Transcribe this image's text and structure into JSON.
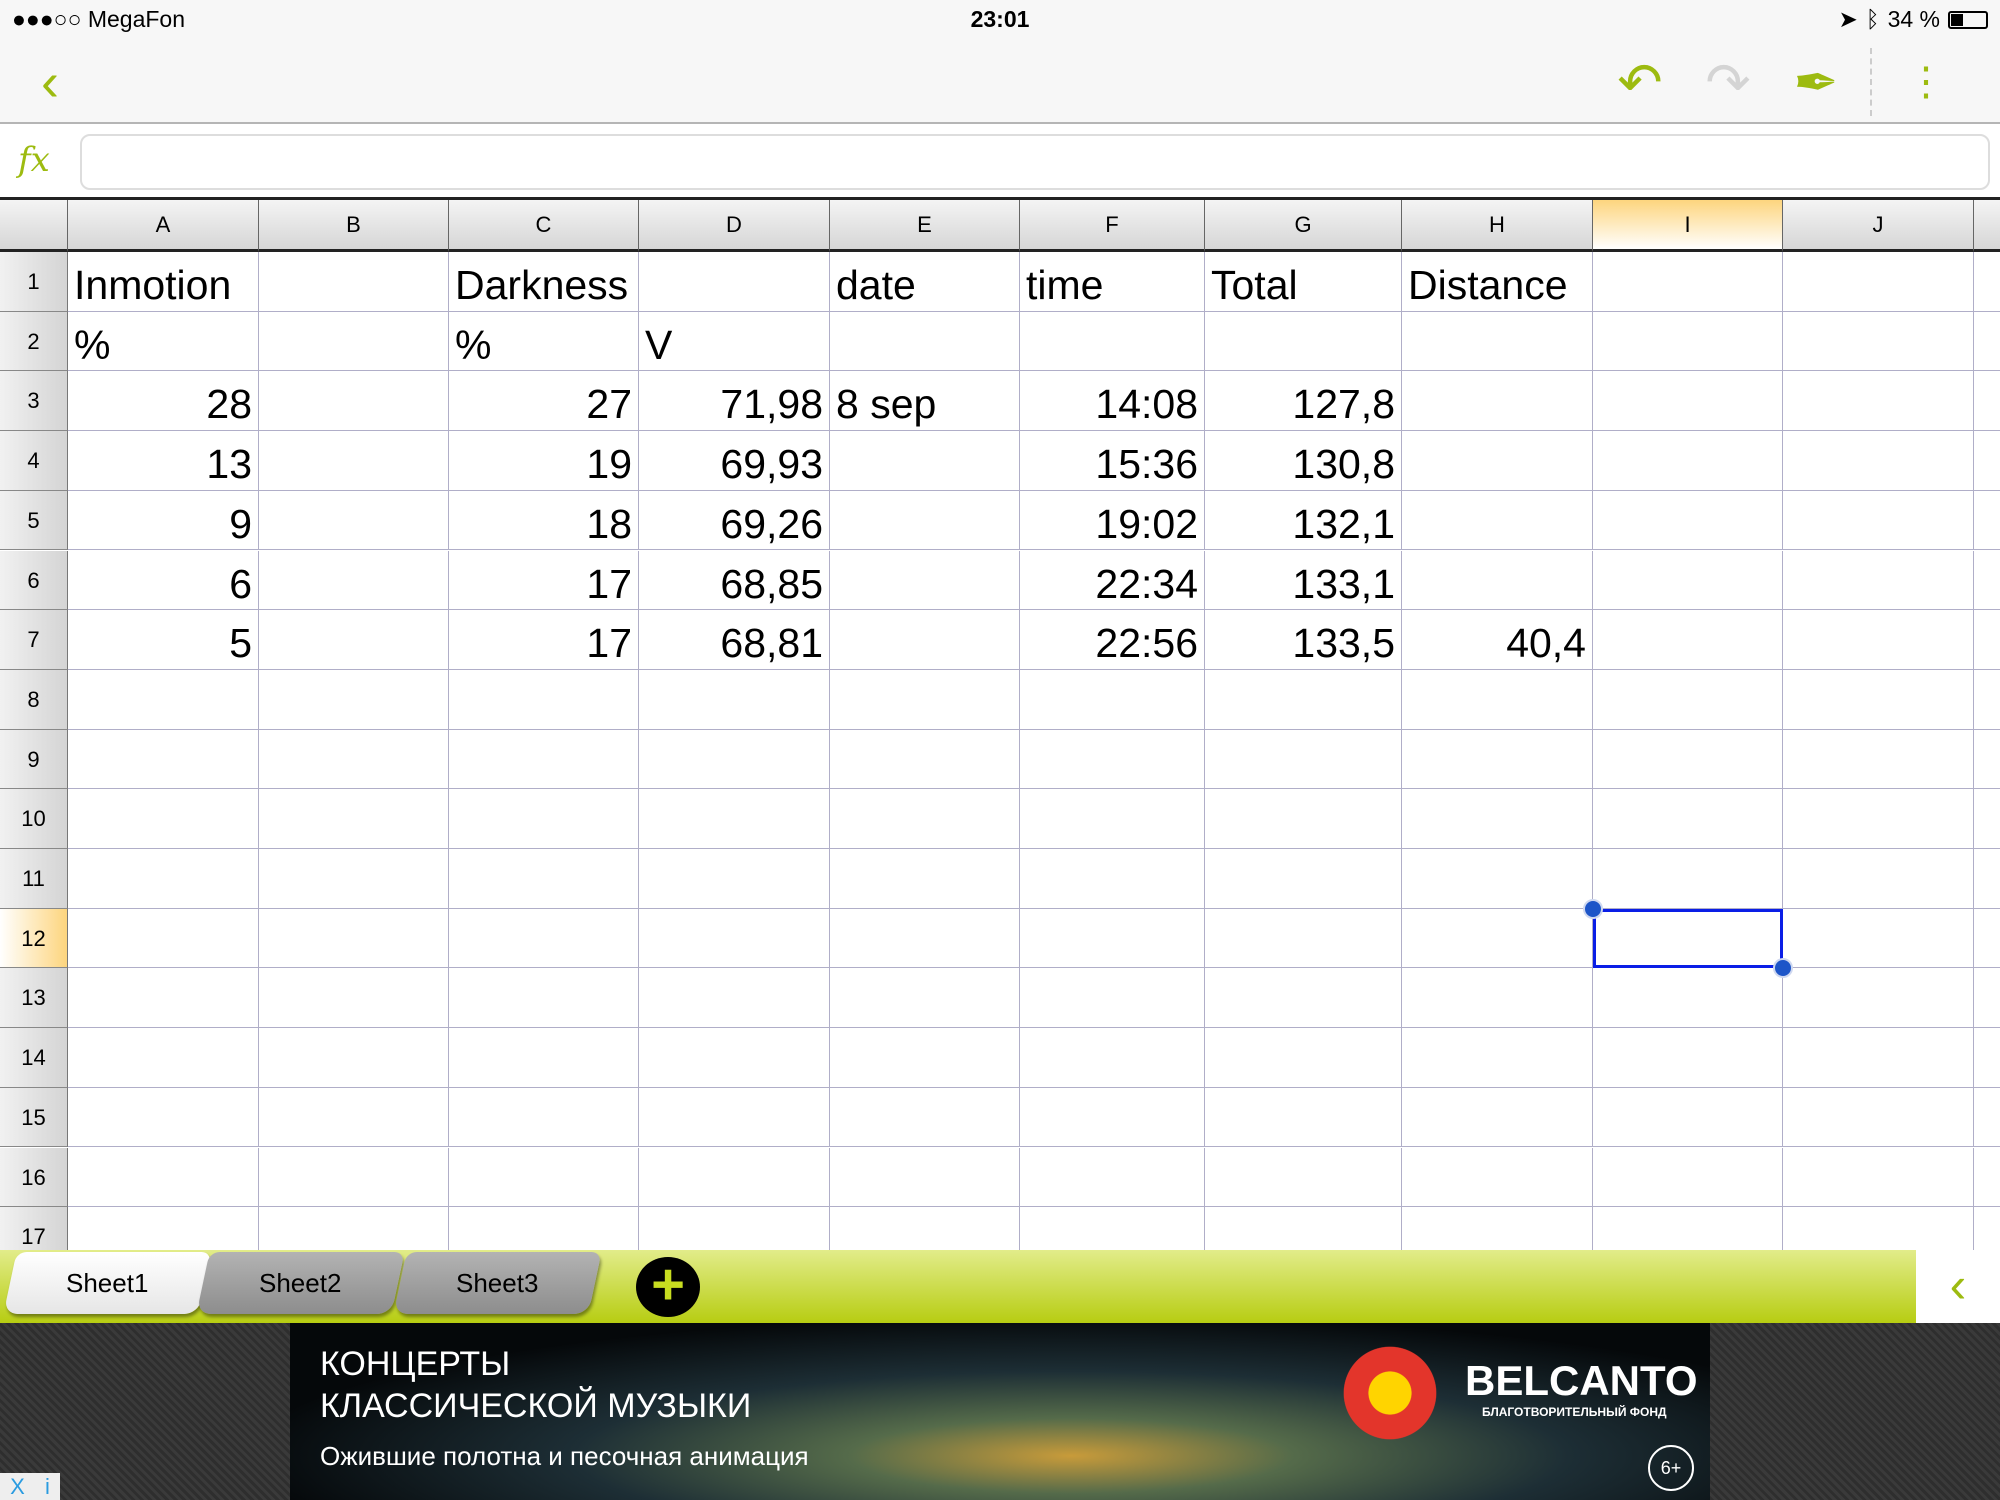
{
  "status_bar": {
    "carrier": "●●●○○ MegaFon",
    "time": "23:01",
    "battery_text": "34 %",
    "battery_level": 0.34
  },
  "toolbar": {
    "back_icon": "chevron-left-icon",
    "undo_icon": "undo-icon",
    "redo_icon": "redo-icon",
    "pen_icon": "pen-icon",
    "more_icon": "more-vertical-icon"
  },
  "formula_bar": {
    "label": "fx",
    "value": ""
  },
  "columns": [
    "A",
    "B",
    "C",
    "D",
    "E",
    "F",
    "G",
    "H",
    "I",
    "J"
  ],
  "selected_cell": "I12",
  "rows": [
    {
      "n": "1",
      "cells": [
        "Inmotion",
        "",
        "Darkness",
        "",
        "date",
        "time",
        "Total",
        "Distance",
        "",
        ""
      ]
    },
    {
      "n": "2",
      "cells": [
        "%",
        "",
        "%",
        "V",
        "",
        "",
        "",
        "",
        "",
        ""
      ]
    },
    {
      "n": "3",
      "cells": [
        "28",
        "",
        "27",
        "71,98",
        "8 sep",
        "14:08",
        "127,8",
        "",
        "",
        ""
      ]
    },
    {
      "n": "4",
      "cells": [
        "13",
        "",
        "19",
        "69,93",
        "",
        "15:36",
        "130,8",
        "",
        "",
        ""
      ]
    },
    {
      "n": "5",
      "cells": [
        "9",
        "",
        "18",
        "69,26",
        "",
        "19:02",
        "132,1",
        "",
        "",
        ""
      ]
    },
    {
      "n": "6",
      "cells": [
        "6",
        "",
        "17",
        "68,85",
        "",
        "22:34",
        "133,1",
        "",
        "",
        ""
      ]
    },
    {
      "n": "7",
      "cells": [
        "5",
        "",
        "17",
        "68,81",
        "",
        "22:56",
        "133,5",
        "40,4",
        "",
        ""
      ]
    },
    {
      "n": "8",
      "cells": [
        "",
        "",
        "",
        "",
        "",
        "",
        "",
        "",
        "",
        ""
      ]
    },
    {
      "n": "9",
      "cells": [
        "",
        "",
        "",
        "",
        "",
        "",
        "",
        "",
        "",
        ""
      ]
    },
    {
      "n": "10",
      "cells": [
        "",
        "",
        "",
        "",
        "",
        "",
        "",
        "",
        "",
        ""
      ]
    },
    {
      "n": "11",
      "cells": [
        "",
        "",
        "",
        "",
        "",
        "",
        "",
        "",
        "",
        ""
      ]
    },
    {
      "n": "12",
      "cells": [
        "",
        "",
        "",
        "",
        "",
        "",
        "",
        "",
        "",
        ""
      ]
    },
    {
      "n": "13",
      "cells": [
        "",
        "",
        "",
        "",
        "",
        "",
        "",
        "",
        "",
        ""
      ]
    },
    {
      "n": "14",
      "cells": [
        "",
        "",
        "",
        "",
        "",
        "",
        "",
        "",
        "",
        ""
      ]
    },
    {
      "n": "15",
      "cells": [
        "",
        "",
        "",
        "",
        "",
        "",
        "",
        "",
        "",
        ""
      ]
    },
    {
      "n": "16",
      "cells": [
        "",
        "",
        "",
        "",
        "",
        "",
        "",
        "",
        "",
        ""
      ]
    },
    {
      "n": "17",
      "cells": [
        "",
        "",
        "",
        "",
        "",
        "",
        "",
        "",
        "",
        ""
      ]
    }
  ],
  "sheets": {
    "tabs": [
      "Sheet1",
      "Sheet2",
      "Sheet3"
    ],
    "active": "Sheet1",
    "add_icon": "plus-circle-icon",
    "collapse_icon": "chevron-left-icon"
  },
  "ad": {
    "line1": "КОНЦЕРТЫ",
    "line2": "КЛАССИЧЕСКОЙ МУЗЫКИ",
    "line3": "Ожившие полотна и песочная анимация",
    "brand": "BELCANTO",
    "brand_sub": "БЛАГОТВОРИТЕЛЬНЫЙ ФОНД",
    "age": "6+",
    "close_label": "X",
    "info_label": "i"
  },
  "colors": {
    "accent": "#9dbb10",
    "selection": "#0a1ee6",
    "header_highlight": "#fdd57e"
  }
}
